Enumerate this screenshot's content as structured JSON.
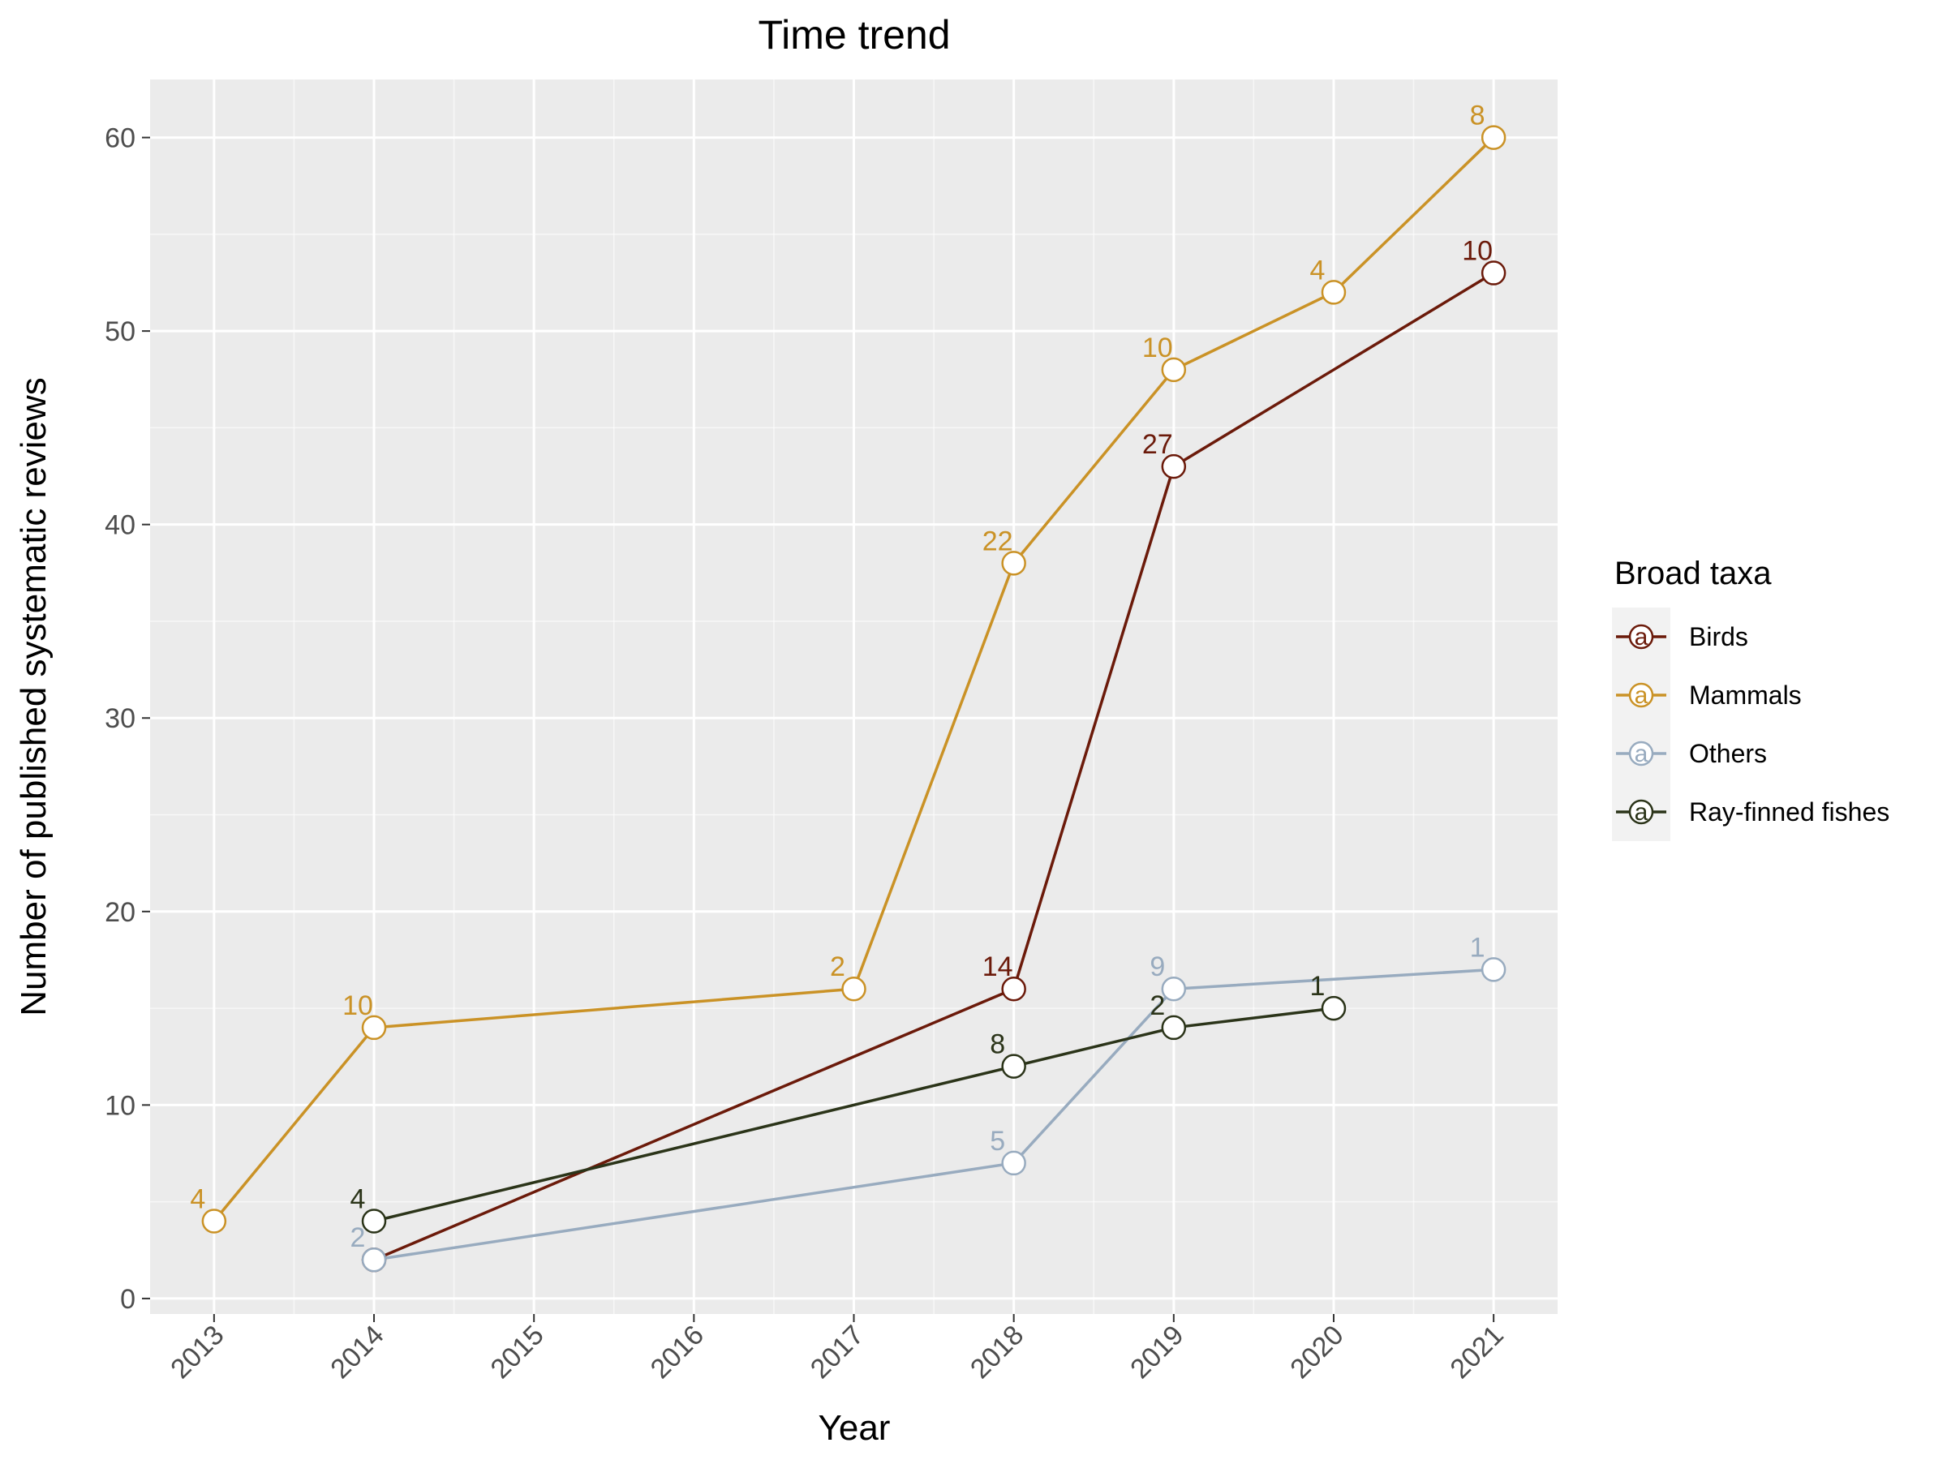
{
  "chart_data": {
    "type": "line",
    "title": "Time trend",
    "xlabel": "Year",
    "ylabel": "Number of published systematic reviews",
    "x_ticks": [
      "2013",
      "2014",
      "2015",
      "2016",
      "2017",
      "2018",
      "2019",
      "2020",
      "2021"
    ],
    "y_ticks": [
      "0",
      "10",
      "20",
      "30",
      "40",
      "50",
      "60"
    ],
    "xlim": [
      2012.6,
      2021.4
    ],
    "ylim": [
      -0.8,
      63
    ],
    "grid": true,
    "panel_background": "#EBEBEB",
    "legend": {
      "title": "Broad taxa",
      "position": "right",
      "key_glyph": "a"
    },
    "series": [
      {
        "name": "Birds",
        "color": "#6B1A0A",
        "points": [
          {
            "x": 2014,
            "y": 2,
            "label": ""
          },
          {
            "x": 2018,
            "y": 16,
            "label": "14"
          },
          {
            "x": 2019,
            "y": 43,
            "label": "27"
          },
          {
            "x": 2021,
            "y": 53,
            "label": "10"
          }
        ]
      },
      {
        "name": "Mammals",
        "color": "#CA9226",
        "points": [
          {
            "x": 2013,
            "y": 4,
            "label": "4"
          },
          {
            "x": 2014,
            "y": 14,
            "label": "10"
          },
          {
            "x": 2017,
            "y": 16,
            "label": "2"
          },
          {
            "x": 2018,
            "y": 38,
            "label": "22"
          },
          {
            "x": 2019,
            "y": 48,
            "label": "10"
          },
          {
            "x": 2020,
            "y": 52,
            "label": "4"
          },
          {
            "x": 2021,
            "y": 60,
            "label": "8"
          }
        ]
      },
      {
        "name": "Others",
        "color": "#98ABBF",
        "points": [
          {
            "x": 2014,
            "y": 2,
            "label": "2"
          },
          {
            "x": 2018,
            "y": 7,
            "label": "5"
          },
          {
            "x": 2019,
            "y": 16,
            "label": "9"
          },
          {
            "x": 2021,
            "y": 17,
            "label": "1"
          }
        ]
      },
      {
        "name": "Ray-finned fishes",
        "color": "#2B3419",
        "points": [
          {
            "x": 2014,
            "y": 4,
            "label": "4"
          },
          {
            "x": 2018,
            "y": 12,
            "label": "8"
          },
          {
            "x": 2019,
            "y": 14,
            "label": "2"
          },
          {
            "x": 2020,
            "y": 15,
            "label": "1"
          }
        ]
      }
    ]
  }
}
